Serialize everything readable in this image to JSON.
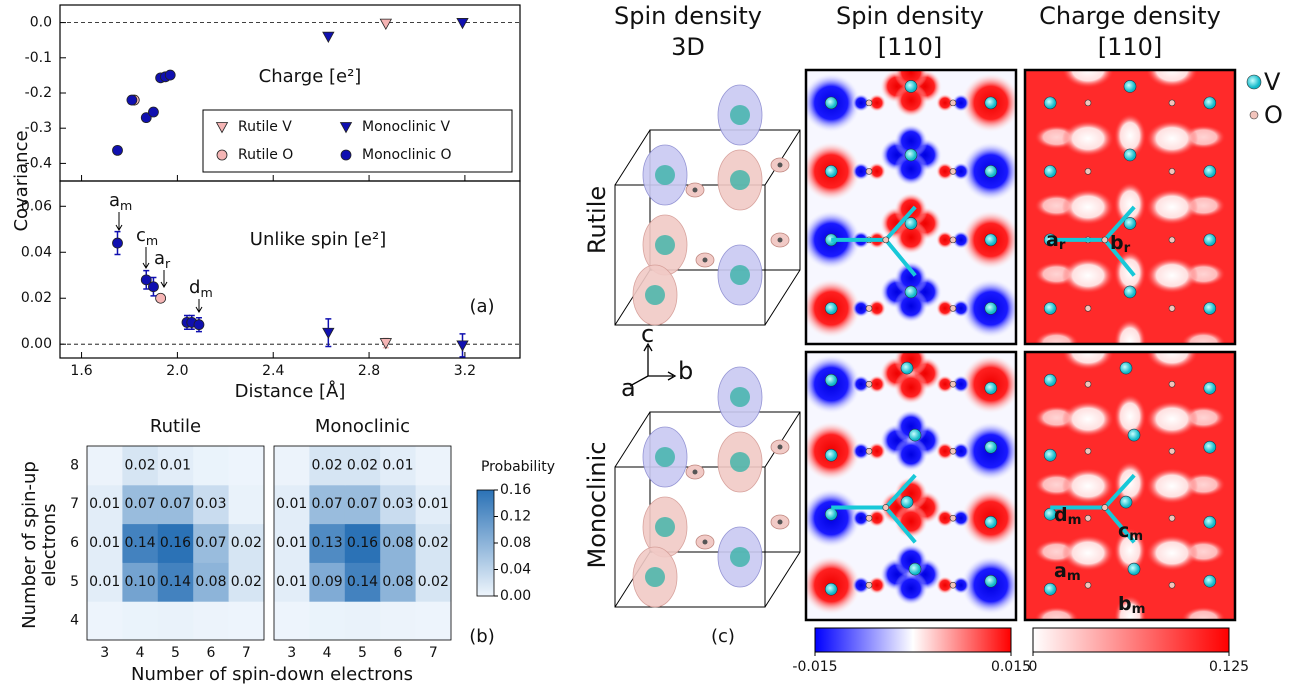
{
  "chart_data": [
    {
      "type": "scatter",
      "ylabel": "Covariance",
      "annotation": "Charge [e²]",
      "xlim": [
        1.51,
        3.43
      ],
      "ylim": [
        -0.45,
        0.05
      ],
      "yticks": [
        {
          "value": 0,
          "label": "0.0"
        },
        -0.1,
        -0.2,
        -0.3,
        -0.4
      ],
      "legend": "lower right",
      "series": [
        {
          "name": "Rutile V",
          "color": "#f5b5b5",
          "marker": "triangle-down",
          "x": [
            2.87
          ],
          "values": [
            -0.003
          ]
        },
        {
          "name": "Rutile O",
          "color": "#f5b5b5",
          "marker": "circle",
          "x": [
            1.82
          ],
          "values": [
            -0.22
          ]
        },
        {
          "name": "Monoclinic V",
          "color": "#1010b0",
          "marker": "triangle-down",
          "x": [
            2.63,
            3.19
          ],
          "values": [
            -0.04,
            -0.001
          ]
        },
        {
          "name": "Monoclinic O",
          "color": "#1010b0",
          "marker": "circle",
          "x": [
            1.75,
            1.87,
            1.9,
            1.81,
            1.93,
            1.95,
            1.97
          ],
          "values": [
            -0.363,
            -0.27,
            -0.254,
            -0.22,
            -0.157,
            -0.154,
            -0.149
          ]
        }
      ]
    },
    {
      "type": "scatter",
      "xlabel": "Distance [Å]",
      "annotation": "Unlike spin [e²]",
      "panel_label": "(a)",
      "xlim": [
        1.51,
        3.43
      ],
      "ylim": [
        -0.006,
        0.071
      ],
      "xticks": [
        1.6,
        {
          "value": 2,
          "label": "2.0"
        },
        2.4,
        2.8,
        3.2
      ],
      "yticks": [
        {
          "value": 0,
          "label": "0.00"
        },
        {
          "value": 0.02,
          "label": "0.02"
        },
        {
          "value": 0.04,
          "label": "0.04"
        },
        {
          "value": 0.06,
          "label": "0.06"
        }
      ],
      "annotations": [
        {
          "text": "a",
          "sub": "m"
        },
        {
          "text": "c",
          "sub": "m"
        },
        {
          "text": "a",
          "sub": "r"
        },
        {
          "text": "d",
          "sub": "m"
        }
      ],
      "series": [
        {
          "color": "#f5b5b5",
          "marker": "triangle-down",
          "x": [
            2.87
          ],
          "values": [
            0.0005
          ],
          "errors": [
            0.002
          ]
        },
        {
          "color": "#f5b5b5",
          "marker": "circle",
          "x": [
            1.93
          ],
          "values": [
            0.02
          ],
          "errors": [
            0.001
          ]
        },
        {
          "color": "#1010b0",
          "marker": "triangle-down",
          "x": [
            2.63,
            3.19
          ],
          "values": [
            0.005,
            -0.0005
          ],
          "errors": [
            0.006,
            0.005
          ]
        },
        {
          "color": "#1010b0",
          "marker": "circle",
          "x": [
            1.75,
            1.87,
            1.9,
            2.04,
            2.06,
            2.09
          ],
          "values": [
            0.044,
            0.028,
            0.025,
            0.0095,
            0.0095,
            0.0085
          ],
          "errors": [
            0.005,
            0.004,
            0.004,
            0.003,
            0.003,
            0.003
          ]
        }
      ]
    },
    {
      "type": "heatmap",
      "title": "Rutile",
      "ylabel": [
        "Number of spin-up",
        "electrons"
      ],
      "x": [
        3,
        4,
        5,
        6,
        7
      ],
      "y": [
        4,
        5,
        6,
        7,
        8
      ],
      "clim": [
        0,
        0.16
      ],
      "color_range": [
        "#eef5fc",
        "#2b72b6"
      ],
      "values": [
        [
          0.001,
          0.003,
          0.004,
          0.002,
          0.001
        ],
        [
          0.01,
          0.1,
          0.14,
          0.08,
          0.02
        ],
        [
          0.01,
          0.14,
          0.16,
          0.07,
          0.02
        ],
        [
          0.01,
          0.07,
          0.07,
          0.03,
          0.004
        ],
        [
          0.002,
          0.02,
          0.01,
          0.003,
          0.001
        ]
      ],
      "value_labels": [
        [
          null,
          null,
          null,
          null,
          null
        ],
        [
          "0.01",
          "0.10",
          "0.14",
          "0.08",
          "0.02"
        ],
        [
          "0.01",
          "0.14",
          "0.16",
          "0.07",
          "0.02"
        ],
        [
          "0.01",
          "0.07",
          "0.07",
          "0.03",
          null
        ],
        [
          null,
          "0.02",
          "0.01",
          null,
          null
        ]
      ]
    },
    {
      "type": "heatmap",
      "title": "Monoclinic",
      "xlabel": "Number of spin-down electrons",
      "panel_label": "(b)",
      "clabel": "Probability",
      "cticks": [
        {
          "value": 0,
          "label": "0.00"
        },
        {
          "value": 0.04,
          "label": "0.04"
        },
        {
          "value": 0.08,
          "label": "0.08"
        },
        {
          "value": 0.12,
          "label": "0.12"
        },
        {
          "value": 0.16,
          "label": "0.16"
        }
      ],
      "x": [
        3,
        4,
        5,
        6,
        7
      ],
      "y": [
        4,
        5,
        6,
        7,
        8
      ],
      "clim": [
        0,
        0.16
      ],
      "color_range": [
        "#eef5fc",
        "#2b72b6"
      ],
      "values": [
        [
          0.001,
          0.003,
          0.004,
          0.002,
          0.001
        ],
        [
          0.01,
          0.09,
          0.14,
          0.08,
          0.02
        ],
        [
          0.01,
          0.13,
          0.16,
          0.08,
          0.02
        ],
        [
          0.01,
          0.07,
          0.07,
          0.03,
          0.01
        ],
        [
          0.002,
          0.02,
          0.02,
          0.01,
          0.002
        ]
      ],
      "value_labels": [
        [
          null,
          null,
          null,
          null,
          null
        ],
        [
          "0.01",
          "0.09",
          "0.14",
          "0.08",
          "0.02"
        ],
        [
          "0.01",
          "0.13",
          "0.16",
          "0.08",
          "0.02"
        ],
        [
          "0.01",
          "0.07",
          "0.07",
          "0.03",
          "0.01"
        ],
        [
          null,
          "0.02",
          "0.02",
          "0.01",
          null
        ]
      ]
    }
  ],
  "panel_c": {
    "column_titles": [
      [
        "Spin density",
        "3D"
      ],
      [
        "Spin density",
        "[110]"
      ],
      [
        "Charge density",
        "[110]"
      ]
    ],
    "row_titles": [
      "Rutile",
      "Monoclinic"
    ],
    "legend": [
      "V",
      "O"
    ],
    "axes": [
      "a",
      "b",
      "c"
    ],
    "bond_labels": [
      [
        {
          "text": "a",
          "sub": "r"
        },
        {
          "text": "b",
          "sub": "r"
        }
      ],
      [
        {
          "text": "d",
          "sub": "m"
        },
        {
          "text": "c",
          "sub": "m"
        },
        {
          "text": "a",
          "sub": "m"
        },
        {
          "text": "b",
          "sub": "m"
        }
      ]
    ],
    "spin_colorbar": {
      "colors": [
        "#0000ff",
        "#ffffff",
        "#ff0000"
      ],
      "clim": [
        -0.015,
        0.015
      ],
      "ticks": [
        -0.015,
        0.015
      ]
    },
    "charge_colorbar": {
      "colors": [
        "#ffffff",
        "#ff0000"
      ],
      "clim": [
        0,
        0.125
      ],
      "ticks": [
        0,
        0.125
      ]
    },
    "panel_label": "(c)"
  }
}
